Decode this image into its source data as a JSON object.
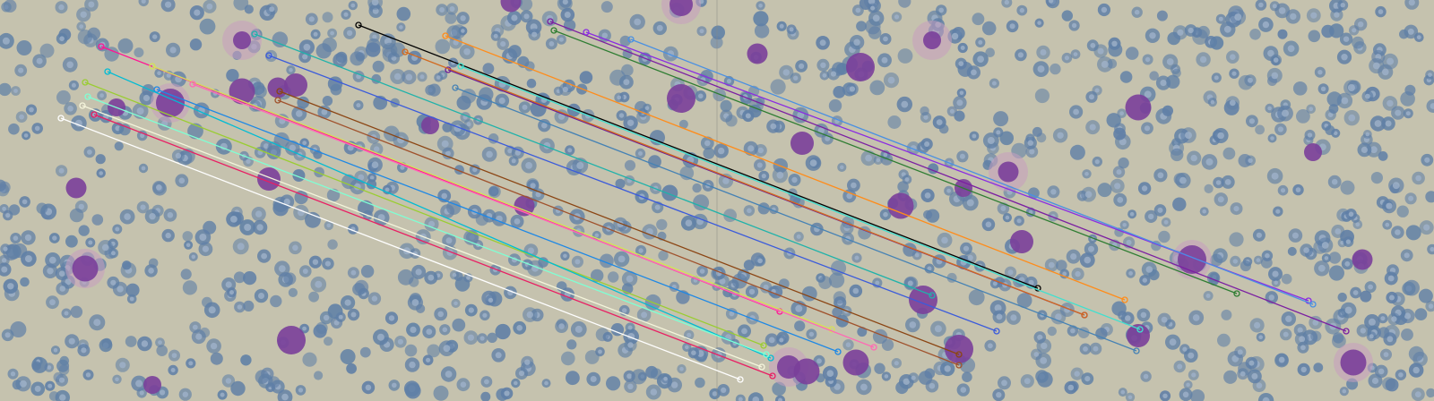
{
  "image": {
    "kind": "side-by-side blood smear micrographs with feature-match lines",
    "panels": [
      "left",
      "right"
    ],
    "background_color": "#c5c2ae",
    "rbc_color": "#5f7fa6",
    "rbc_pale_center": "#9fb2c9",
    "wbc_color": "#7a3f9a",
    "wbc_halo_color": "#c79fbf",
    "panel_seam_color": "#8a8a84"
  },
  "match_lines": {
    "count": 24,
    "colors": [
      "#ff1493",
      "#000000",
      "#ff8c1a",
      "#7b1fa2",
      "#8a2be2",
      "#4a90e2",
      "#2e7d32",
      "#40e0d0",
      "#9acd32",
      "#d4e157",
      "#1e88e5",
      "#6a1b9a",
      "#d2691e",
      "#ffffff",
      "#e91e63",
      "#3b5bdb",
      "#20b2aa",
      "#8b4513",
      "#ff69b4",
      "#00bcd4",
      "#7fffd4",
      "#f5f5dc",
      "#a0522d",
      "#4682b4"
    ]
  }
}
